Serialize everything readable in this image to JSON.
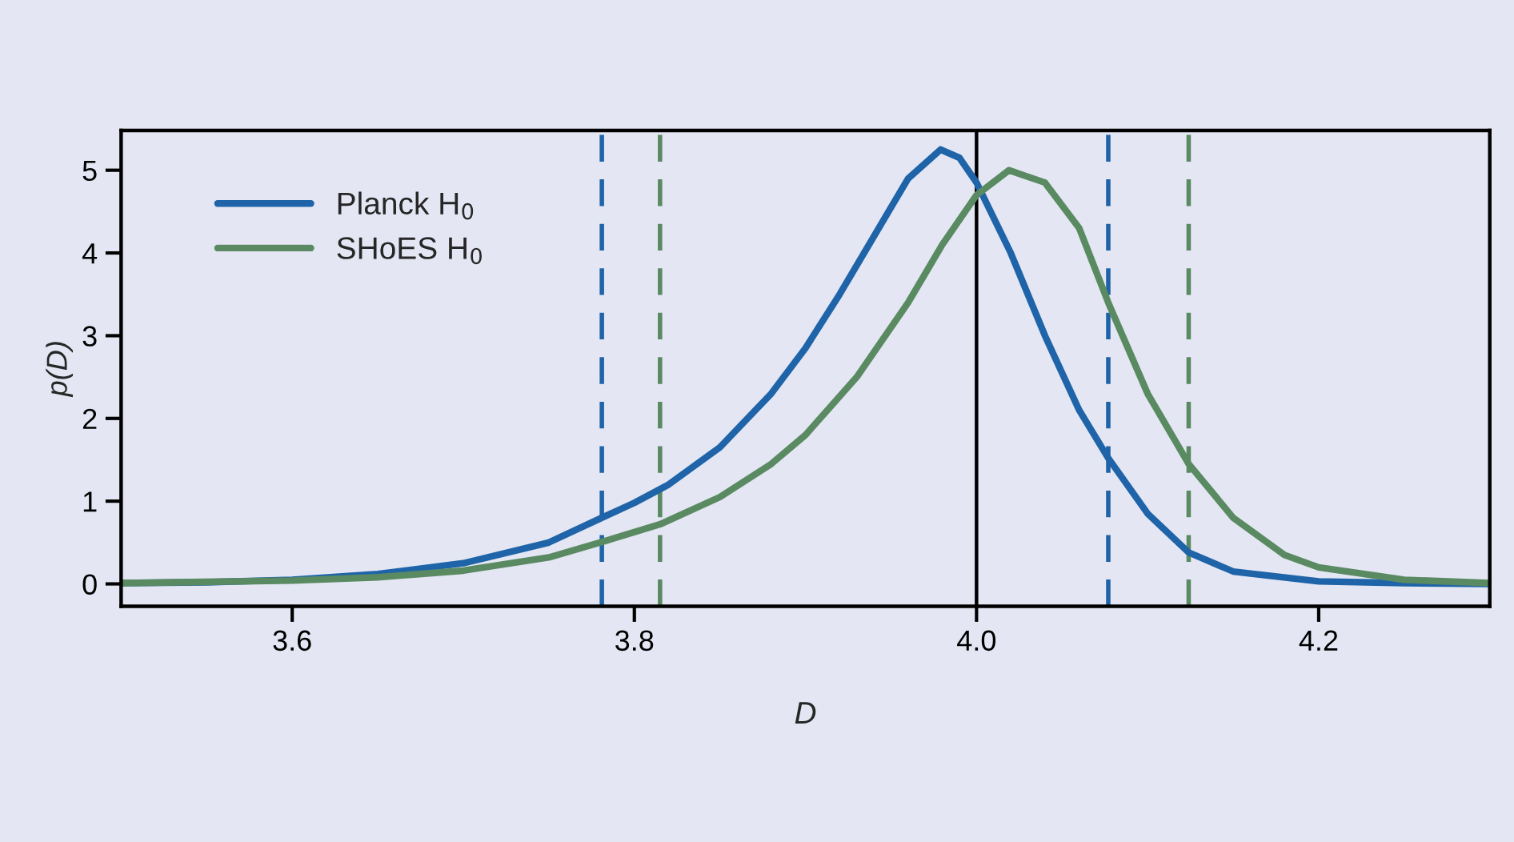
{
  "chart_data": {
    "type": "line",
    "xlabel": "D",
    "ylabel": "p(D)",
    "xlim": [
      3.5,
      4.3
    ],
    "xticks": [
      {
        "value": 3.6,
        "label": "3.6"
      },
      {
        "value": 3.8,
        "label": "3.8"
      },
      {
        "value": 4.0,
        "label": "4.0"
      },
      {
        "value": 4.2,
        "label": "4.2"
      }
    ],
    "ylim": [
      -0.27,
      5.48
    ],
    "yticks": [
      0,
      1,
      2,
      3,
      4,
      5
    ],
    "grid": false,
    "legend": "top left",
    "marker": "none",
    "line_style": "solid",
    "series": [
      {
        "name": "Planck H$_{0}$",
        "color": "#1f64a8",
        "x": [
          3.5,
          3.55,
          3.6,
          3.65,
          3.7,
          3.75,
          3.78,
          3.8,
          3.82,
          3.85,
          3.88,
          3.9,
          3.92,
          3.94,
          3.96,
          3.979,
          3.99,
          4.0,
          4.02,
          4.04,
          4.06,
          4.077,
          4.1,
          4.124,
          4.15,
          4.2,
          4.25,
          4.3
        ],
        "values": [
          0.01,
          0.02,
          0.05,
          0.12,
          0.25,
          0.5,
          0.79,
          0.98,
          1.2,
          1.65,
          2.3,
          2.85,
          3.5,
          4.2,
          4.9,
          5.25,
          5.15,
          4.85,
          4.0,
          3.0,
          2.1,
          1.52,
          0.85,
          0.38,
          0.15,
          0.03,
          0.01,
          0.0
        ]
      },
      {
        "name": "SHoES H$_{0}$",
        "color": "#5a8a62",
        "x": [
          3.5,
          3.6,
          3.65,
          3.7,
          3.75,
          3.78,
          3.815,
          3.85,
          3.88,
          3.9,
          3.93,
          3.96,
          3.98,
          4.0,
          4.019,
          4.04,
          4.06,
          4.077,
          4.1,
          4.124,
          4.15,
          4.18,
          4.2,
          4.25,
          4.3
        ],
        "values": [
          0.01,
          0.04,
          0.08,
          0.16,
          0.32,
          0.5,
          0.72,
          1.05,
          1.45,
          1.8,
          2.5,
          3.4,
          4.1,
          4.7,
          5.0,
          4.85,
          4.3,
          3.4,
          2.3,
          1.45,
          0.8,
          0.35,
          0.2,
          0.05,
          0.01
        ]
      }
    ],
    "ref_lines": [
      {
        "axis": "x",
        "value": 4.0,
        "color": "#000000",
        "line_style": "solid"
      },
      {
        "axis": "x",
        "value": 3.781,
        "color": "#1f64a8",
        "line_style": "dashed"
      },
      {
        "axis": "x",
        "value": 3.815,
        "color": "#5a8a62",
        "line_style": "dashed"
      },
      {
        "axis": "x",
        "value": 4.077,
        "color": "#1f64a8",
        "line_style": "dashed"
      },
      {
        "axis": "x",
        "value": 4.124,
        "color": "#5a8a62",
        "line_style": "dashed"
      }
    ]
  }
}
